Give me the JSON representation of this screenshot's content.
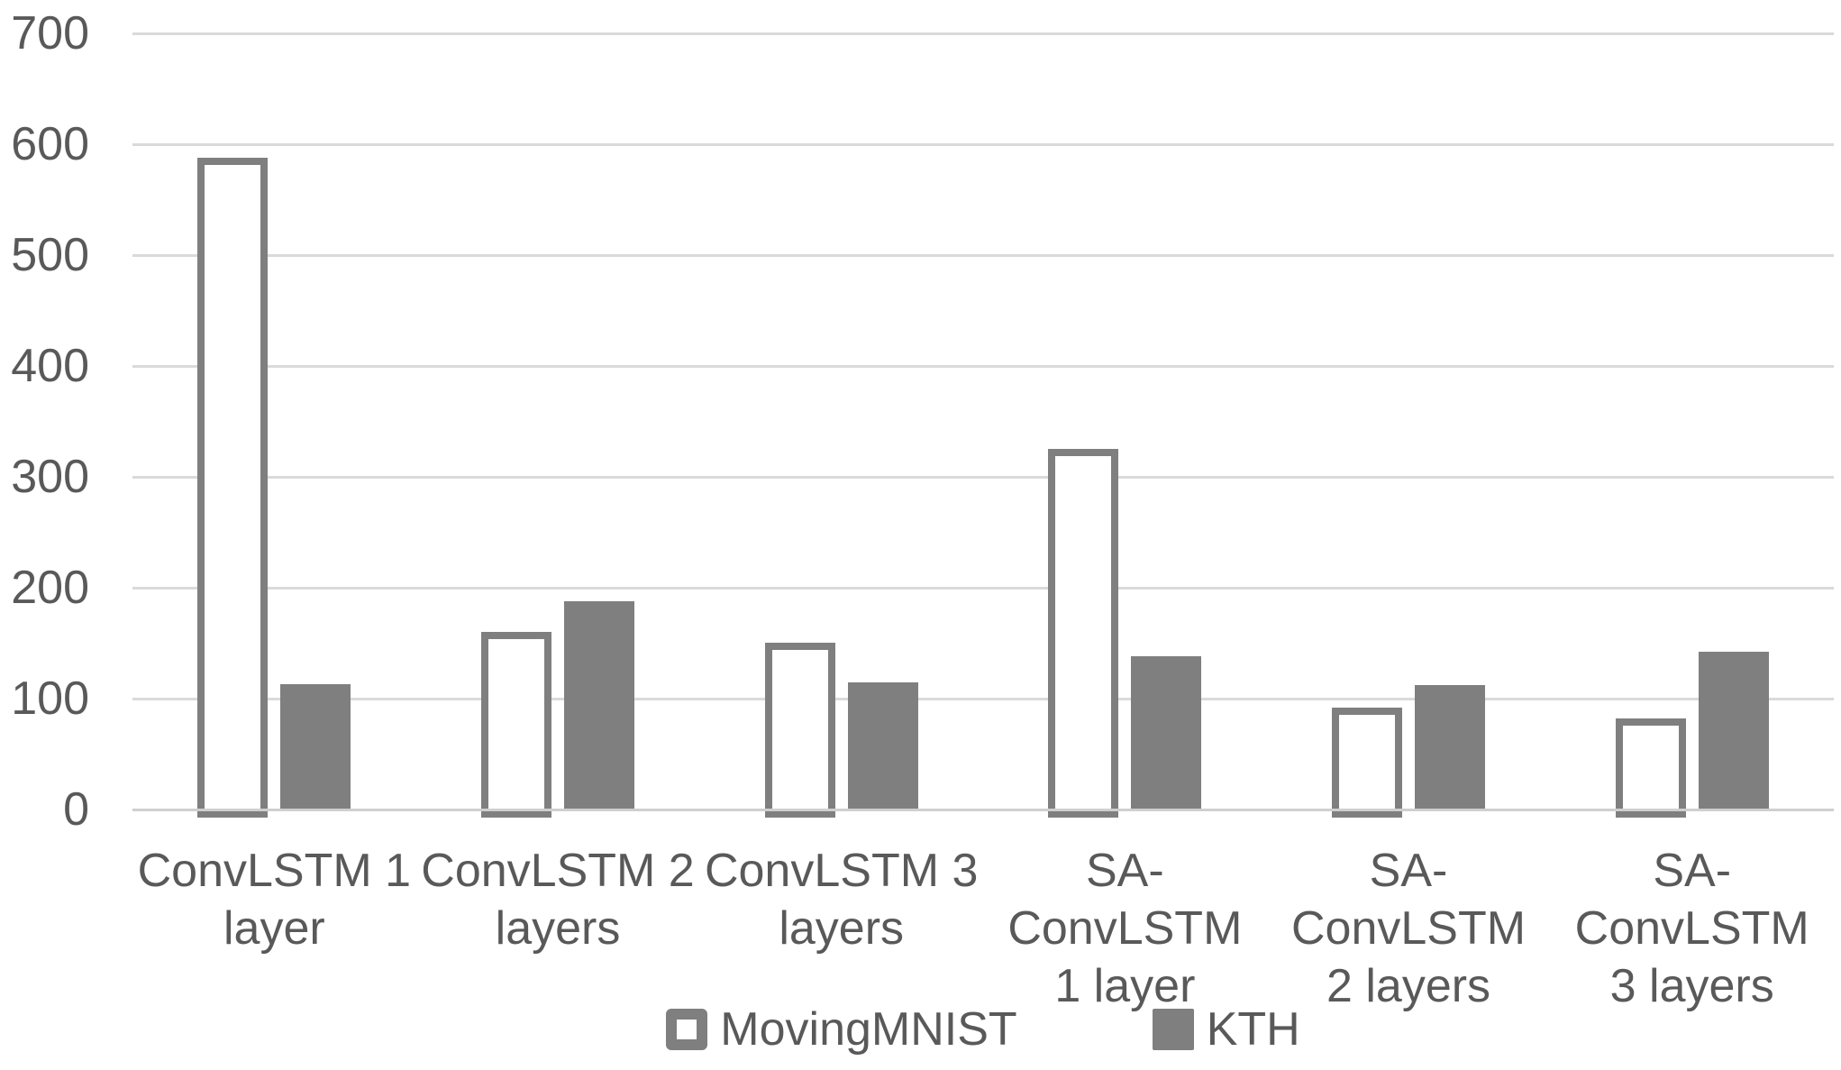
{
  "chart_data": {
    "type": "bar",
    "title": "",
    "xlabel": "",
    "ylabel": "",
    "categories": [
      "ConvLSTM 1 layer",
      "ConvLSTM 2 layers",
      "ConvLSTM 3 layers",
      "SA-ConvLSTM 1 layer",
      "SA-ConvLSTM 2 layers",
      "SA-ConvLSTM 3 layers"
    ],
    "category_tick_labels": [
      "ConvLSTM 1\nlayer",
      "ConvLSTM 2\nlayers",
      "ConvLSTM 3\nlayers",
      "SA-ConvLSTM\n1 layer",
      "SA-ConvLSTM\n2 layers",
      "SA-ConvLSTM\n3 layers"
    ],
    "series": [
      {
        "name": "MovingMNIST",
        "style": "outlined",
        "fill": "#ffffff",
        "stroke": "#7f7f7f",
        "values": [
          588,
          160,
          150,
          325,
          92,
          82
        ]
      },
      {
        "name": "KTH",
        "style": "solid",
        "fill": "#7f7f7f",
        "values": [
          113,
          188,
          115,
          138,
          112,
          142
        ]
      }
    ],
    "ylim": [
      0,
      700
    ],
    "yticks": [
      0,
      100,
      200,
      300,
      400,
      500,
      600,
      700
    ],
    "grid": true,
    "legend_position": "bottom"
  },
  "colors": {
    "background": "#ffffff",
    "text": "#595959",
    "gridline": "#dadada",
    "axis_line": "#cfcfcf",
    "bar_gray": "#7f7f7f",
    "bar_outline_fill": "#ffffff"
  }
}
